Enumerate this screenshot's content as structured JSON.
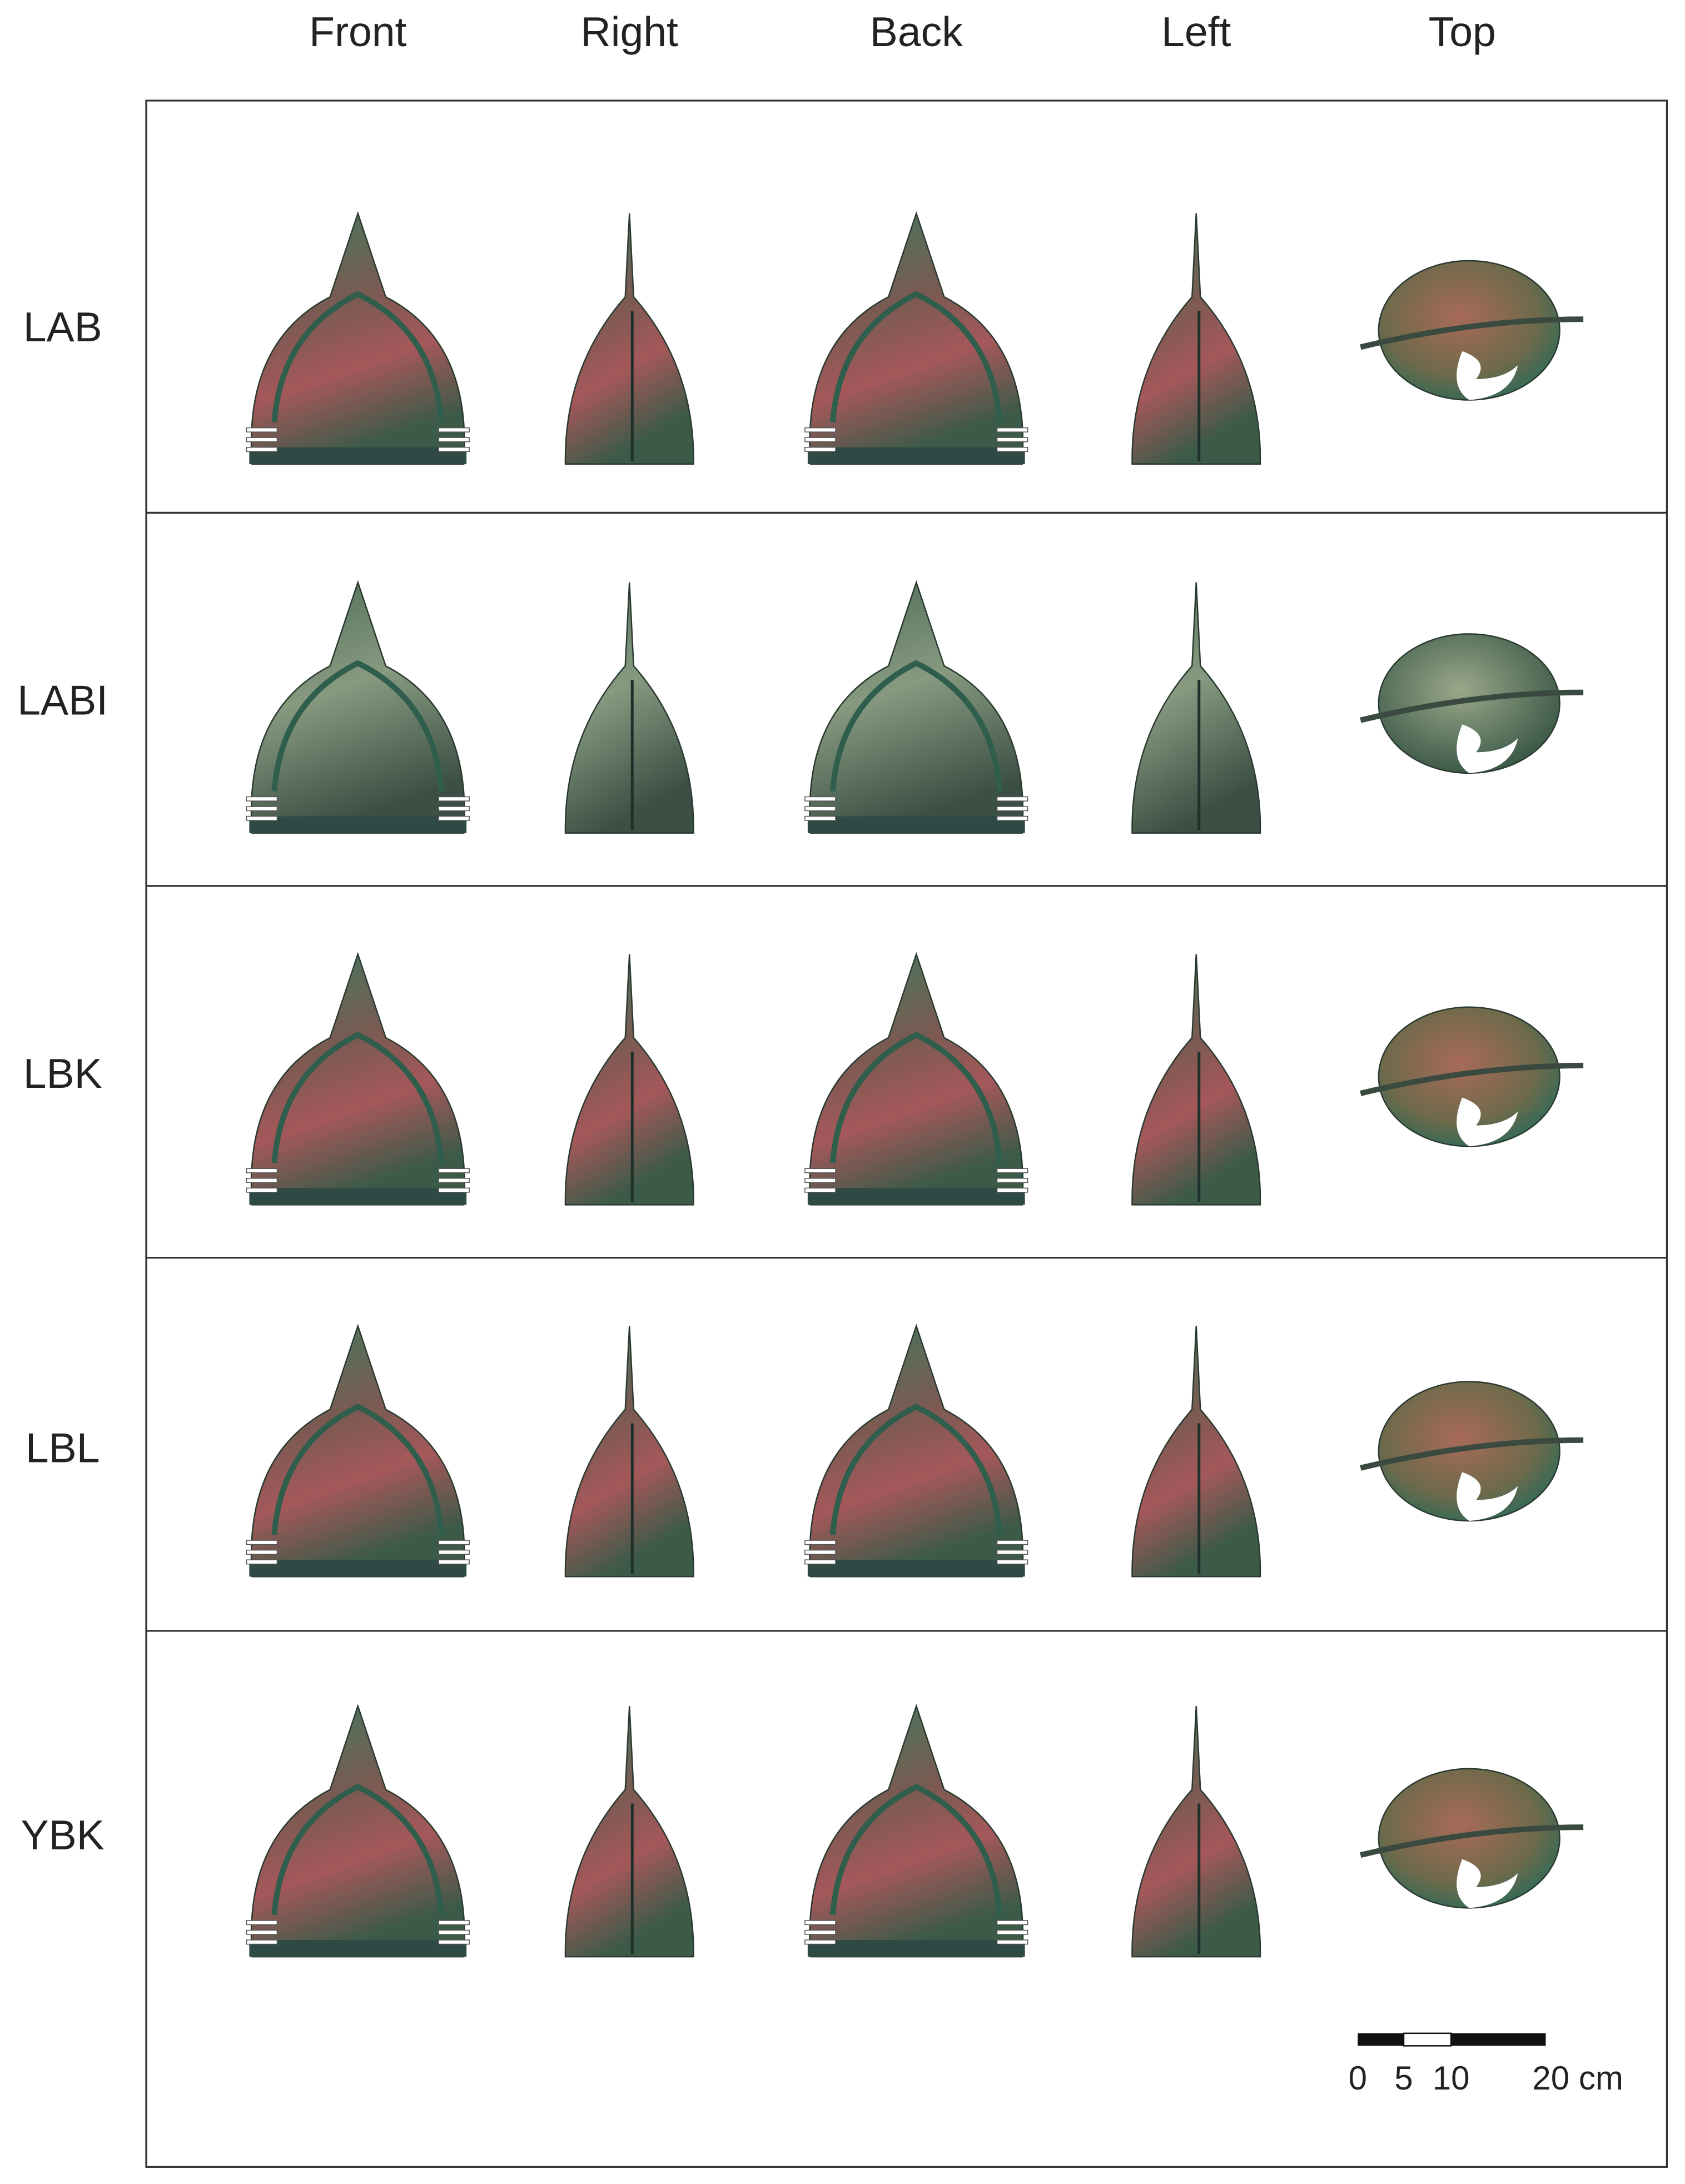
{
  "column_headers": [
    "Front",
    "Right",
    "Back",
    "Left",
    "Top"
  ],
  "row_labels": [
    "LAB",
    "LABI",
    "LBK",
    "LBL",
    "YBK"
  ],
  "scale_bar": {
    "labels": [
      "0",
      "5",
      "10",
      "20 cm"
    ]
  }
}
